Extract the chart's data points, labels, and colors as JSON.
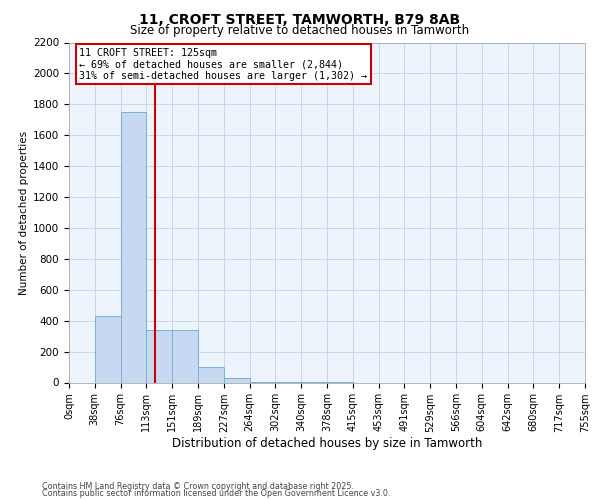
{
  "title": "11, CROFT STREET, TAMWORTH, B79 8AB",
  "subtitle": "Size of property relative to detached houses in Tamworth",
  "xlabel": "Distribution of detached houses by size in Tamworth",
  "ylabel": "Number of detached properties",
  "property_size": 125,
  "annotation_line1": "11 CROFT STREET: 125sqm",
  "annotation_line2": "← 69% of detached houses are smaller (2,844)",
  "annotation_line3": "31% of semi-detached houses are larger (1,302) →",
  "footer_line1": "Contains HM Land Registry data © Crown copyright and database right 2025.",
  "footer_line2": "Contains public sector information licensed under the Open Government Licence v3.0.",
  "bar_color": "#c6d9f0",
  "bar_edge_color": "#7bafd4",
  "vline_color": "#cc0000",
  "annotation_box_edge_color": "#cc0000",
  "grid_color": "#c8d8e8",
  "background_color": "#ffffff",
  "plot_bg_color": "#eef4fb",
  "ylim": [
    0,
    2200
  ],
  "yticks": [
    0,
    200,
    400,
    600,
    800,
    1000,
    1200,
    1400,
    1600,
    1800,
    2000,
    2200
  ],
  "bin_labels": [
    "0sqm",
    "38sqm",
    "76sqm",
    "113sqm",
    "151sqm",
    "189sqm",
    "227sqm",
    "264sqm",
    "302sqm",
    "340sqm",
    "378sqm",
    "415sqm",
    "453sqm",
    "491sqm",
    "529sqm",
    "566sqm",
    "604sqm",
    "642sqm",
    "680sqm",
    "717sqm",
    "755sqm"
  ],
  "counts": [
    0,
    430,
    1750,
    340,
    340,
    100,
    30,
    5,
    2,
    1,
    1,
    0,
    0,
    0,
    0,
    0,
    0,
    0,
    0,
    0
  ]
}
